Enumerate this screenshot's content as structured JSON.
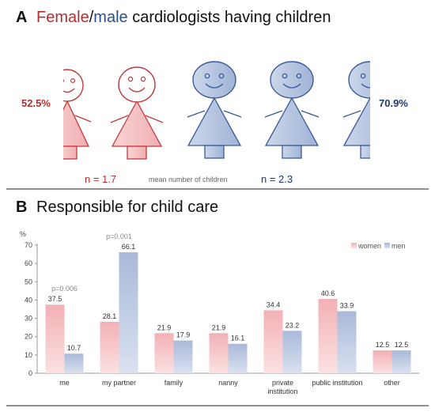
{
  "panel_a": {
    "letter": "A",
    "title_female": "Female",
    "title_slash": "/",
    "title_male": "male",
    "title_rest": " cardiologists having children",
    "pct_female": "52.5%",
    "pct_male": "70.9%",
    "n_female": "n = 1.7",
    "n_caption": "mean number of children",
    "n_male": "n = 2.3"
  },
  "panel_b": {
    "letter": "B",
    "title": "Responsible for child care",
    "legend_women": "women",
    "legend_men": "men",
    "y_unit": "%",
    "p_values": {
      "me": "p=0.006",
      "my_partner": "p=0.001"
    }
  },
  "colors": {
    "female": "#b03030",
    "male": "#2a4f8a",
    "female_fill": "#f4c6c8",
    "male_fill": "#b8c6e0"
  },
  "chart_data": {
    "type": "bar",
    "categories": [
      "me",
      "my partner",
      "family",
      "nanny",
      "private institution",
      "public institution",
      "other"
    ],
    "category_lines": [
      [
        "me"
      ],
      [
        "my partner"
      ],
      [
        "family"
      ],
      [
        "nanny"
      ],
      [
        "private",
        "institution"
      ],
      [
        "public institution"
      ],
      [
        "other"
      ]
    ],
    "series": [
      {
        "name": "women",
        "values": [
          37.5,
          28.1,
          21.9,
          21.9,
          34.4,
          40.6,
          12.5
        ],
        "labels": [
          "37.5",
          "28.1",
          "21.9",
          "21.9",
          "34.4",
          "40.6",
          "12.5"
        ]
      },
      {
        "name": "men",
        "values": [
          10.7,
          66.1,
          17.9,
          16.1,
          23.2,
          33.9,
          12.5
        ],
        "labels": [
          "10.7",
          "66.1",
          "17.9",
          "16.1",
          "23.2",
          "33.9",
          "12.5"
        ]
      }
    ],
    "ylim": [
      0,
      70
    ],
    "yticks": [
      "0",
      "10",
      "20",
      "30",
      "40",
      "50",
      "60",
      "70"
    ],
    "ylabel": "%",
    "legend": "top-right",
    "grid": false
  }
}
